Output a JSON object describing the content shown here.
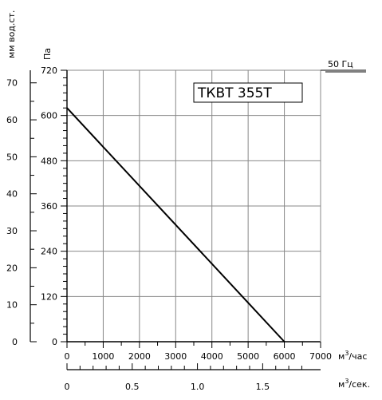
{
  "chart_data": {
    "type": "line",
    "model_label": "ТКВТ 355Т",
    "frequency_label": "50 Гц",
    "x_axis": {
      "label": "м³/час",
      "unit_base": "м",
      "unit_exp": "3",
      "unit_suffix": "/час",
      "range": [
        0,
        7000
      ],
      "ticks": [
        0,
        1000,
        2000,
        3000,
        4000,
        5000,
        6000,
        7000
      ]
    },
    "x2_axis": {
      "label": "м³/сек.",
      "unit_base": "м",
      "unit_exp": "3",
      "unit_suffix": "/сек.",
      "range": [
        0,
        1.944
      ],
      "ticks": [
        0,
        0.5,
        1,
        1.5
      ],
      "tick_labels": [
        "0",
        "0.5",
        "1.0",
        "1.5"
      ]
    },
    "y_axis": {
      "label": "Па",
      "range": [
        0,
        720
      ],
      "ticks": [
        0,
        120,
        240,
        360,
        480,
        600,
        720
      ]
    },
    "y2_axis": {
      "label": "мм вод.ст.",
      "range": [
        0,
        73.4
      ],
      "ticks": [
        0,
        10,
        20,
        30,
        40,
        50,
        60,
        70
      ]
    },
    "grid": true,
    "series": [
      {
        "x": [
          0,
          6000
        ],
        "y": [
          620,
          0
        ]
      }
    ]
  }
}
